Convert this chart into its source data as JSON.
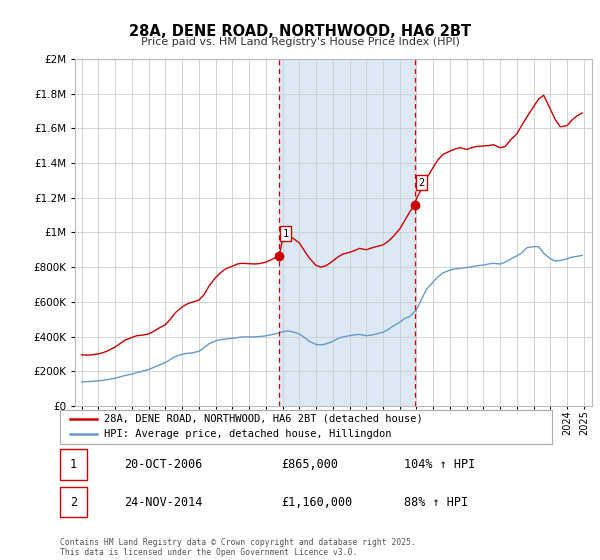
{
  "title": "28A, DENE ROAD, NORTHWOOD, HA6 2BT",
  "subtitle": "Price paid vs. HM Land Registry's House Price Index (HPI)",
  "legend_entry1": "28A, DENE ROAD, NORTHWOOD, HA6 2BT (detached house)",
  "legend_entry2": "HPI: Average price, detached house, Hillingdon",
  "transaction1_label": "1",
  "transaction1_date": "20-OCT-2006",
  "transaction1_price": "£865,000",
  "transaction1_hpi": "104% ↑ HPI",
  "transaction2_label": "2",
  "transaction2_date": "24-NOV-2014",
  "transaction2_price": "£1,160,000",
  "transaction2_hpi": "88% ↑ HPI",
  "footer": "Contains HM Land Registry data © Crown copyright and database right 2025.\nThis data is licensed under the Open Government Licence v3.0.",
  "highlight_color": "#dce9f5",
  "vline_color": "#cc0000",
  "red_line_color": "#cc0000",
  "blue_line_color": "#6699cc",
  "grid_color": "#cccccc",
  "background_color": "#ffffff",
  "ylim": [
    0,
    2000000
  ],
  "yticks": [
    0,
    200000,
    400000,
    600000,
    800000,
    1000000,
    1200000,
    1400000,
    1600000,
    1800000,
    2000000
  ],
  "transaction1_x": 2006.8,
  "transaction2_x": 2014.9,
  "marker_size": 6,
  "red_hpi_data": {
    "years": [
      1995.0,
      1995.3,
      1995.6,
      1996.0,
      1996.3,
      1996.6,
      1997.0,
      1997.3,
      1997.6,
      1998.0,
      1998.3,
      1998.6,
      1999.0,
      1999.3,
      1999.6,
      2000.0,
      2000.3,
      2000.6,
      2001.0,
      2001.3,
      2001.6,
      2002.0,
      2002.3,
      2002.6,
      2003.0,
      2003.3,
      2003.6,
      2004.0,
      2004.3,
      2004.6,
      2005.0,
      2005.3,
      2005.6,
      2006.0,
      2006.3,
      2006.6,
      2006.8,
      2007.0,
      2007.3,
      2007.6,
      2008.0,
      2008.3,
      2008.6,
      2009.0,
      2009.3,
      2009.6,
      2010.0,
      2010.3,
      2010.6,
      2011.0,
      2011.3,
      2011.6,
      2012.0,
      2012.3,
      2012.6,
      2013.0,
      2013.3,
      2013.6,
      2014.0,
      2014.3,
      2014.6,
      2014.9,
      2015.0,
      2015.3,
      2015.6,
      2016.0,
      2016.3,
      2016.6,
      2017.0,
      2017.3,
      2017.6,
      2018.0,
      2018.3,
      2018.6,
      2019.0,
      2019.3,
      2019.6,
      2020.0,
      2020.3,
      2020.6,
      2021.0,
      2021.3,
      2021.6,
      2022.0,
      2022.3,
      2022.6,
      2023.0,
      2023.3,
      2023.6,
      2024.0,
      2024.3,
      2024.6,
      2024.9
    ],
    "values": [
      295000,
      293000,
      295000,
      300000,
      308000,
      320000,
      340000,
      360000,
      380000,
      395000,
      405000,
      408000,
      415000,
      430000,
      448000,
      468000,
      500000,
      538000,
      570000,
      588000,
      598000,
      610000,
      640000,
      690000,
      740000,
      768000,
      790000,
      805000,
      818000,
      822000,
      820000,
      818000,
      820000,
      828000,
      842000,
      854000,
      865000,
      960000,
      975000,
      968000,
      940000,
      895000,
      852000,
      810000,
      800000,
      808000,
      835000,
      858000,
      875000,
      885000,
      895000,
      908000,
      900000,
      910000,
      918000,
      928000,
      948000,
      975000,
      1020000,
      1068000,
      1118000,
      1160000,
      1195000,
      1250000,
      1310000,
      1375000,
      1420000,
      1450000,
      1468000,
      1480000,
      1488000,
      1478000,
      1488000,
      1495000,
      1498000,
      1500000,
      1505000,
      1488000,
      1495000,
      1530000,
      1568000,
      1618000,
      1665000,
      1725000,
      1768000,
      1790000,
      1710000,
      1648000,
      1608000,
      1615000,
      1648000,
      1672000,
      1688000
    ]
  },
  "blue_hpi_data": {
    "years": [
      1995.0,
      1995.3,
      1995.6,
      1996.0,
      1996.3,
      1996.6,
      1997.0,
      1997.3,
      1997.6,
      1998.0,
      1998.3,
      1998.6,
      1999.0,
      1999.3,
      1999.6,
      2000.0,
      2000.3,
      2000.6,
      2001.0,
      2001.3,
      2001.6,
      2002.0,
      2002.3,
      2002.6,
      2003.0,
      2003.3,
      2003.6,
      2004.0,
      2004.3,
      2004.6,
      2005.0,
      2005.3,
      2005.6,
      2006.0,
      2006.3,
      2006.6,
      2007.0,
      2007.3,
      2007.6,
      2008.0,
      2008.3,
      2008.6,
      2009.0,
      2009.3,
      2009.6,
      2010.0,
      2010.3,
      2010.6,
      2011.0,
      2011.3,
      2011.6,
      2012.0,
      2012.3,
      2012.6,
      2013.0,
      2013.3,
      2013.6,
      2014.0,
      2014.3,
      2014.6,
      2015.0,
      2015.3,
      2015.6,
      2016.0,
      2016.3,
      2016.6,
      2017.0,
      2017.3,
      2017.6,
      2018.0,
      2018.3,
      2018.6,
      2019.0,
      2019.3,
      2019.6,
      2020.0,
      2020.3,
      2020.6,
      2021.0,
      2021.3,
      2021.6,
      2022.0,
      2022.3,
      2022.6,
      2023.0,
      2023.3,
      2023.6,
      2024.0,
      2024.3,
      2024.6,
      2024.9
    ],
    "values": [
      138000,
      140000,
      142000,
      145000,
      148000,
      153000,
      160000,
      168000,
      176000,
      184000,
      192000,
      200000,
      210000,
      222000,
      235000,
      250000,
      268000,
      285000,
      298000,
      303000,
      306000,
      315000,
      335000,
      358000,
      375000,
      382000,
      386000,
      390000,
      394000,
      398000,
      398000,
      398000,
      400000,
      404000,
      410000,
      416000,
      428000,
      432000,
      428000,
      415000,
      395000,
      372000,
      355000,
      352000,
      358000,
      372000,
      388000,
      398000,
      405000,
      410000,
      412000,
      405000,
      408000,
      415000,
      425000,
      440000,
      460000,
      482000,
      505000,
      515000,
      555000,
      615000,
      672000,
      715000,
      745000,
      768000,
      782000,
      790000,
      792000,
      798000,
      802000,
      808000,
      812000,
      818000,
      822000,
      818000,
      828000,
      845000,
      865000,
      882000,
      912000,
      918000,
      918000,
      880000,
      848000,
      835000,
      838000,
      848000,
      858000,
      862000,
      868000
    ]
  }
}
